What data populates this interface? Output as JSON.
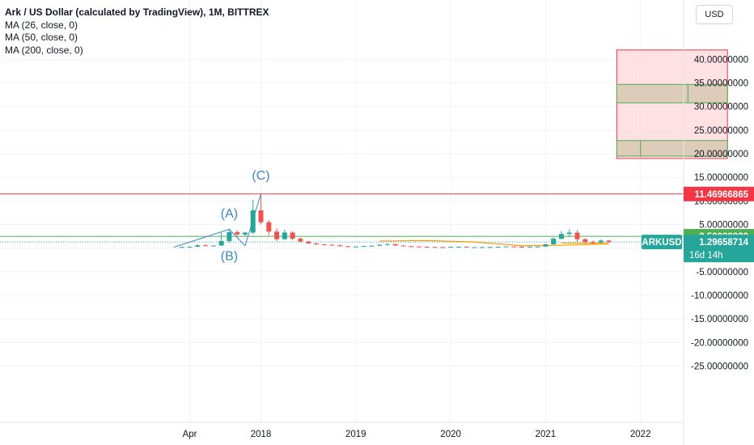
{
  "legend": {
    "title": "Ark / US Dollar (calculated by TradingView), 1M, BITTREX",
    "ma": [
      "MA (26, close, 0)",
      "MA (50, close, 0)",
      "MA (200, close, 0)"
    ]
  },
  "currency": "USD",
  "colors": {
    "up": "#26a69a",
    "down": "#ef5350",
    "resistance": "#f23645",
    "support": "#4caf50",
    "ma26": "#ff9800",
    "ma50": "#f7a600",
    "annotation": "#3d85c6",
    "zone_fill": "#ffcdd2",
    "zone_green": "#d7c8b2"
  },
  "chart_data": {
    "type": "candlestick",
    "symbol": "ARKUSD",
    "interval": "1M",
    "exchange": "BITTREX",
    "y_ticks": [
      40,
      35,
      30,
      25,
      20,
      15,
      10,
      5,
      0,
      -5,
      -10,
      -15,
      -20,
      -25
    ],
    "y_tick_labels": [
      "40.00000000",
      "35.00000000",
      "30.00000000",
      "25.00000000",
      "20.00000000",
      "15.00000000",
      "10.00000000",
      "5.00000000",
      "0.00000000",
      "-5.00000000",
      "-10.00000000",
      "-15.00000000",
      "-20.00000000",
      "-25.00000000"
    ],
    "x_ticks": [
      {
        "label": "Apr",
        "date": "2017-04"
      },
      {
        "label": "2018",
        "date": "2018-01"
      },
      {
        "label": "2019",
        "date": "2019-01"
      },
      {
        "label": "2020",
        "date": "2020-01"
      },
      {
        "label": "2021",
        "date": "2021-01"
      },
      {
        "label": "2022",
        "date": "2022-01"
      }
    ],
    "candles": [
      {
        "date": "2017-03",
        "o": 0.2,
        "h": 0.3,
        "l": 0.1,
        "c": 0.25
      },
      {
        "date": "2017-04",
        "o": 0.25,
        "h": 0.35,
        "l": 0.2,
        "c": 0.3
      },
      {
        "date": "2017-05",
        "o": 0.3,
        "h": 0.8,
        "l": 0.25,
        "c": 0.6
      },
      {
        "date": "2017-06",
        "o": 0.6,
        "h": 0.8,
        "l": 0.4,
        "c": 0.5
      },
      {
        "date": "2017-07",
        "o": 0.5,
        "h": 0.6,
        "l": 0.4,
        "c": 0.55
      },
      {
        "date": "2017-08",
        "o": 0.55,
        "h": 3.5,
        "l": 0.5,
        "c": 1.5
      },
      {
        "date": "2017-09",
        "o": 1.5,
        "h": 4.0,
        "l": 1.2,
        "c": 3.4
      },
      {
        "date": "2017-10",
        "o": 3.4,
        "h": 3.8,
        "l": 2.4,
        "c": 2.9
      },
      {
        "date": "2017-11",
        "o": 2.9,
        "h": 3.5,
        "l": 2.6,
        "c": 3.3
      },
      {
        "date": "2017-12",
        "o": 3.3,
        "h": 10.3,
        "l": 3.0,
        "c": 8.0
      },
      {
        "date": "2018-01",
        "o": 8.0,
        "h": 11.3,
        "l": 5.0,
        "c": 5.5
      },
      {
        "date": "2018-02",
        "o": 5.5,
        "h": 6.0,
        "l": 2.7,
        "c": 3.5
      },
      {
        "date": "2018-03",
        "o": 3.5,
        "h": 4.2,
        "l": 1.5,
        "c": 1.9
      },
      {
        "date": "2018-04",
        "o": 1.9,
        "h": 3.9,
        "l": 1.8,
        "c": 3.3
      },
      {
        "date": "2018-05",
        "o": 3.3,
        "h": 3.6,
        "l": 1.7,
        "c": 2.0
      },
      {
        "date": "2018-06",
        "o": 2.0,
        "h": 2.3,
        "l": 1.2,
        "c": 1.4
      },
      {
        "date": "2018-07",
        "o": 1.4,
        "h": 1.5,
        "l": 0.9,
        "c": 1.0
      },
      {
        "date": "2018-08",
        "o": 1.0,
        "h": 1.1,
        "l": 0.7,
        "c": 0.8
      },
      {
        "date": "2018-09",
        "o": 0.8,
        "h": 0.9,
        "l": 0.6,
        "c": 0.7
      },
      {
        "date": "2018-10",
        "o": 0.7,
        "h": 0.8,
        "l": 0.55,
        "c": 0.6
      },
      {
        "date": "2018-11",
        "o": 0.6,
        "h": 0.7,
        "l": 0.35,
        "c": 0.4
      },
      {
        "date": "2018-12",
        "o": 0.4,
        "h": 0.5,
        "l": 0.25,
        "c": 0.3
      },
      {
        "date": "2019-01",
        "o": 0.3,
        "h": 0.4,
        "l": 0.25,
        "c": 0.35
      },
      {
        "date": "2019-02",
        "o": 0.35,
        "h": 0.5,
        "l": 0.3,
        "c": 0.45
      },
      {
        "date": "2019-03",
        "o": 0.45,
        "h": 0.6,
        "l": 0.4,
        "c": 0.5
      },
      {
        "date": "2019-04",
        "o": 0.5,
        "h": 0.8,
        "l": 0.45,
        "c": 0.7
      },
      {
        "date": "2019-05",
        "o": 0.7,
        "h": 1.0,
        "l": 0.6,
        "c": 0.85
      },
      {
        "date": "2019-06",
        "o": 0.85,
        "h": 0.9,
        "l": 0.5,
        "c": 0.55
      },
      {
        "date": "2019-07",
        "o": 0.55,
        "h": 0.6,
        "l": 0.35,
        "c": 0.4
      },
      {
        "date": "2019-08",
        "o": 0.4,
        "h": 0.45,
        "l": 0.3,
        "c": 0.35
      },
      {
        "date": "2019-09",
        "o": 0.35,
        "h": 0.4,
        "l": 0.25,
        "c": 0.3
      },
      {
        "date": "2019-10",
        "o": 0.3,
        "h": 0.35,
        "l": 0.22,
        "c": 0.25
      },
      {
        "date": "2019-11",
        "o": 0.25,
        "h": 0.3,
        "l": 0.2,
        "c": 0.22
      },
      {
        "date": "2019-12",
        "o": 0.22,
        "h": 0.25,
        "l": 0.18,
        "c": 0.2
      },
      {
        "date": "2020-01",
        "o": 0.2,
        "h": 0.3,
        "l": 0.18,
        "c": 0.27
      },
      {
        "date": "2020-02",
        "o": 0.27,
        "h": 0.35,
        "l": 0.24,
        "c": 0.3
      },
      {
        "date": "2020-03",
        "o": 0.3,
        "h": 0.32,
        "l": 0.14,
        "c": 0.18
      },
      {
        "date": "2020-04",
        "o": 0.18,
        "h": 0.22,
        "l": 0.15,
        "c": 0.2
      },
      {
        "date": "2020-05",
        "o": 0.2,
        "h": 0.24,
        "l": 0.18,
        "c": 0.22
      },
      {
        "date": "2020-06",
        "o": 0.22,
        "h": 0.26,
        "l": 0.2,
        "c": 0.24
      },
      {
        "date": "2020-07",
        "o": 0.24,
        "h": 0.32,
        "l": 0.22,
        "c": 0.3
      },
      {
        "date": "2020-08",
        "o": 0.3,
        "h": 0.4,
        "l": 0.28,
        "c": 0.36
      },
      {
        "date": "2020-09",
        "o": 0.36,
        "h": 0.38,
        "l": 0.28,
        "c": 0.3
      },
      {
        "date": "2020-10",
        "o": 0.3,
        "h": 0.33,
        "l": 0.25,
        "c": 0.28
      },
      {
        "date": "2020-11",
        "o": 0.28,
        "h": 0.35,
        "l": 0.26,
        "c": 0.32
      },
      {
        "date": "2020-12",
        "o": 0.32,
        "h": 0.38,
        "l": 0.27,
        "c": 0.34
      },
      {
        "date": "2021-01",
        "o": 0.34,
        "h": 0.9,
        "l": 0.3,
        "c": 0.8
      },
      {
        "date": "2021-02",
        "o": 0.8,
        "h": 2.3,
        "l": 0.7,
        "c": 2.0
      },
      {
        "date": "2021-03",
        "o": 2.0,
        "h": 3.6,
        "l": 1.8,
        "c": 3.0
      },
      {
        "date": "2021-04",
        "o": 3.0,
        "h": 4.0,
        "l": 2.4,
        "c": 3.3
      },
      {
        "date": "2021-05",
        "o": 3.3,
        "h": 3.8,
        "l": 1.3,
        "c": 1.9
      },
      {
        "date": "2021-06",
        "o": 1.9,
        "h": 2.1,
        "l": 1.0,
        "c": 1.3
      },
      {
        "date": "2021-07",
        "o": 1.3,
        "h": 1.6,
        "l": 0.9,
        "c": 1.2
      },
      {
        "date": "2021-08",
        "o": 1.2,
        "h": 1.8,
        "l": 1.1,
        "c": 1.6
      },
      {
        "date": "2021-09",
        "o": 1.6,
        "h": 1.7,
        "l": 1.2,
        "c": 1.3
      }
    ],
    "ma_lines": [
      {
        "name": "MA (26, close, 0)",
        "color": "#ff9800",
        "points": [
          [
            "2019-04",
            1.5
          ],
          [
            "2019-10",
            1.6
          ],
          [
            "2020-04",
            1.3
          ],
          [
            "2020-10",
            0.5
          ],
          [
            "2021-03",
            0.6
          ],
          [
            "2021-09",
            0.9
          ]
        ]
      },
      {
        "name": "MA (50, close, 0)",
        "color": "#f7a600",
        "points": [
          [
            "2021-03",
            1.1
          ],
          [
            "2021-09",
            1.0
          ]
        ]
      }
    ],
    "horizontal_lines": [
      {
        "price": 11.46966865,
        "label": "11.46966865",
        "color": "#f23645"
      },
      {
        "price": 2.50938223,
        "label": "2.50938223",
        "color": "#4caf50"
      }
    ],
    "last_price": {
      "symbol": "ARKUSD",
      "price": 1.29658714,
      "label": "1.29658714",
      "countdown": "16d 14h",
      "color": "#26a69a"
    },
    "zone": {
      "date_from": "2021-10",
      "date_to": "2022-12",
      "price_from": 19,
      "price_to": 42,
      "inner_boxes": [
        {
          "price_from": 30.8,
          "price_to": 34.7,
          "divider_date": "2022-07"
        },
        {
          "price_from": 19.5,
          "price_to": 22.8,
          "divider_date": "2022-01"
        }
      ]
    },
    "annotations": [
      {
        "text": "(A)",
        "date": "2017-09",
        "price": 6.5
      },
      {
        "text": "(B)",
        "date": "2017-09",
        "price": -2.5
      },
      {
        "text": "(C)",
        "date": "2018-01",
        "price": 14.5
      }
    ],
    "trend_lines": [
      [
        [
          "2017-02",
          0.2
        ],
        [
          "2017-09",
          4.0
        ],
        [
          "2017-11",
          0.5
        ],
        [
          "2018-01",
          11.5
        ]
      ]
    ]
  }
}
